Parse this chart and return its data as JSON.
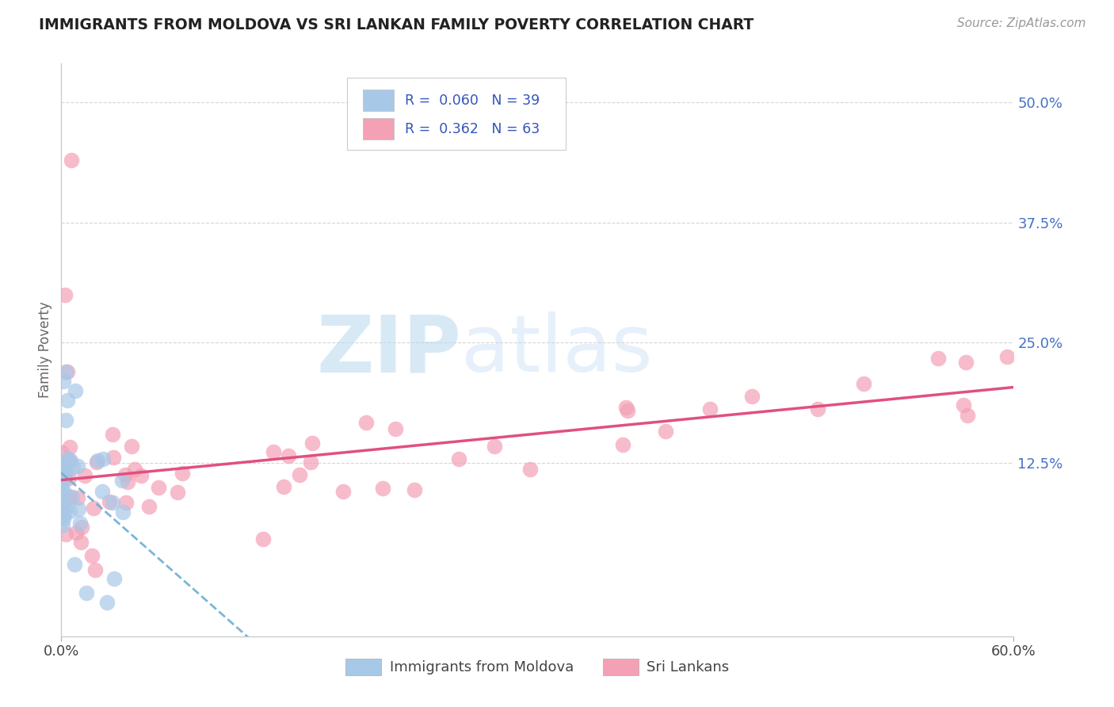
{
  "title": "IMMIGRANTS FROM MOLDOVA VS SRI LANKAN FAMILY POVERTY CORRELATION CHART",
  "source": "Source: ZipAtlas.com",
  "ylabel": "Family Poverty",
  "xlim": [
    0.0,
    0.6
  ],
  "ylim": [
    -0.055,
    0.54
  ],
  "ytick_vals": [
    0.0,
    0.125,
    0.25,
    0.375,
    0.5
  ],
  "ytick_labels": [
    "",
    "12.5%",
    "25.0%",
    "37.5%",
    "50.0%"
  ],
  "xtick_vals": [
    0.0,
    0.6
  ],
  "xtick_labels": [
    "0.0%",
    "60.0%"
  ],
  "moldova_color": "#a8c8e8",
  "srilanka_color": "#f4a0b5",
  "moldova_line_color": "#6baed6",
  "srilanka_line_color": "#e05080",
  "ytick_color": "#4472c4",
  "watermark_zip": "ZIP",
  "watermark_atlas": "atlas",
  "background_color": "#ffffff",
  "grid_color": "#cccccc",
  "legend_r1": "R =  0.060",
  "legend_n1": "N = 39",
  "legend_r2": "R =  0.362",
  "legend_n2": "N = 63",
  "moldova_seed": 42,
  "srilanka_seed": 7
}
